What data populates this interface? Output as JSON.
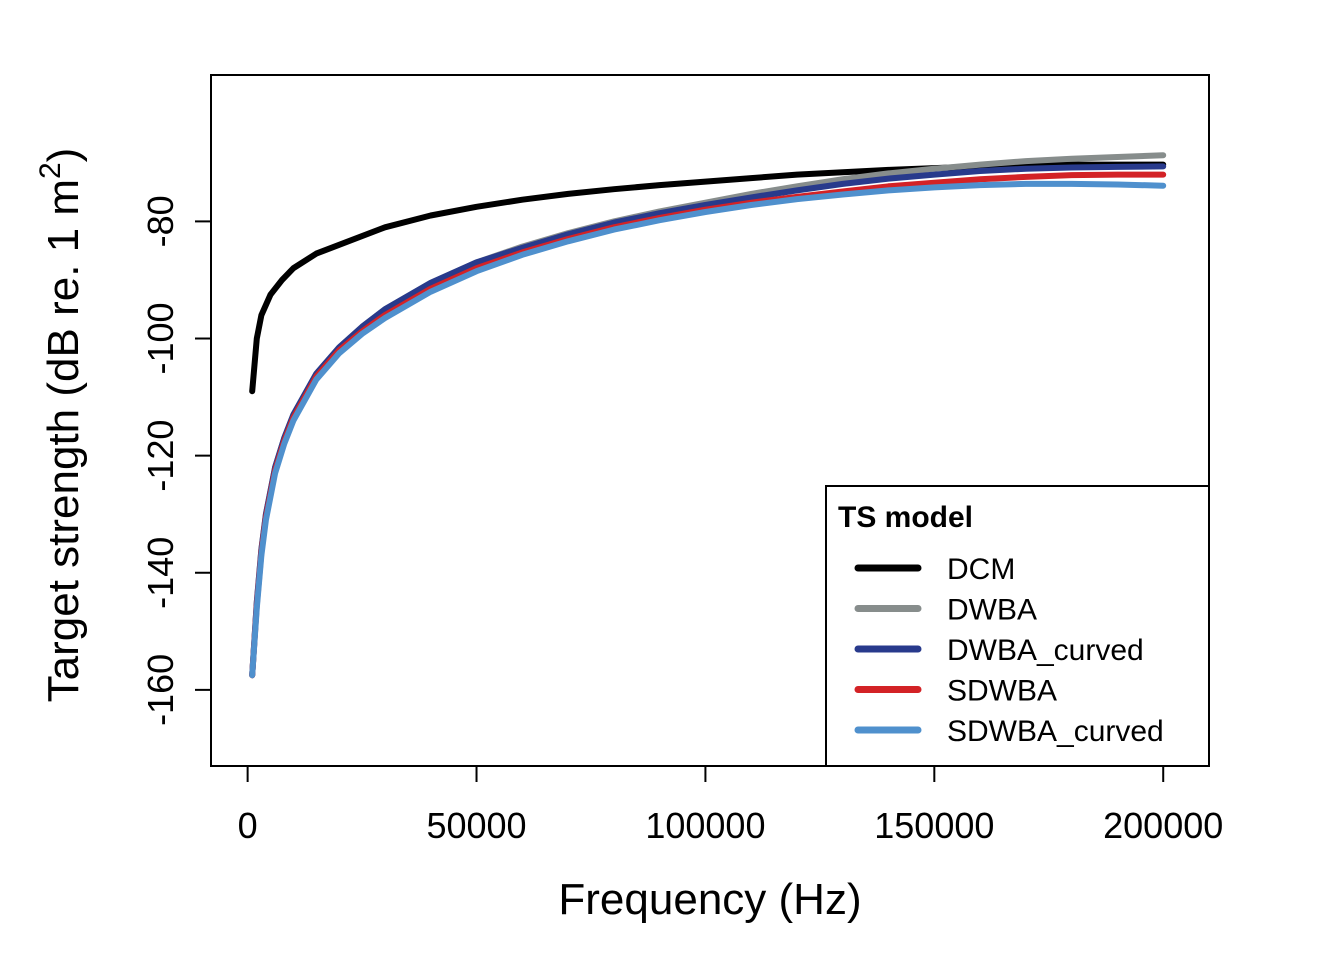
{
  "chart_data": {
    "type": "line",
    "title": "",
    "xlabel": "Frequency (Hz)",
    "ylabel_main": "Target strength (dB re. 1 m",
    "ylabel_sup": "2",
    "ylabel_close": ")",
    "xlim": [
      -8000,
      210000
    ],
    "ylim": [
      -173,
      -55
    ],
    "xticks": [
      0,
      50000,
      100000,
      150000,
      200000
    ],
    "xtick_labels": [
      "0",
      "50000",
      "100000",
      "150000",
      "200000"
    ],
    "yticks": [
      -160,
      -140,
      -120,
      -100,
      -80
    ],
    "ytick_labels": [
      "-160",
      "-140",
      "-120",
      "-100",
      "-80"
    ],
    "grid": false,
    "legend": {
      "title": "TS model",
      "position": "bottom-right",
      "entries": [
        "DCM",
        "DWBA",
        "DWBA_curved",
        "SDWBA",
        "SDWBA_curved"
      ]
    },
    "series": [
      {
        "name": "DCM",
        "color": "#000000",
        "x": [
          1000,
          2000,
          3000,
          5000,
          7500,
          10000,
          15000,
          20000,
          30000,
          40000,
          50000,
          60000,
          70000,
          80000,
          90000,
          100000,
          110000,
          120000,
          130000,
          140000,
          150000,
          160000,
          170000,
          180000,
          190000,
          200000
        ],
        "y": [
          -109,
          -100,
          -96,
          -92.5,
          -90,
          -88,
          -85.5,
          -84,
          -81,
          -79,
          -77.5,
          -76.3,
          -75.3,
          -74.5,
          -73.8,
          -73.2,
          -72.6,
          -72,
          -71.6,
          -71.2,
          -70.9,
          -70.6,
          -70.4,
          -70.3,
          -70.3,
          -70.3
        ]
      },
      {
        "name": "DWBA",
        "color": "#878d8c",
        "x": [
          1000,
          2000,
          3000,
          4000,
          6000,
          8000,
          10000,
          15000,
          20000,
          25000,
          30000,
          40000,
          50000,
          60000,
          70000,
          80000,
          90000,
          100000,
          110000,
          120000,
          130000,
          140000,
          150000,
          160000,
          170000,
          180000,
          190000,
          200000
        ],
        "y": [
          -157.5,
          -145,
          -136,
          -130,
          -122,
          -117,
          -113,
          -106,
          -101.5,
          -98,
          -95,
          -90.5,
          -87,
          -84.3,
          -82,
          -80,
          -78.3,
          -76.8,
          -75.3,
          -74,
          -72.8,
          -71.8,
          -71,
          -70.3,
          -69.7,
          -69.3,
          -69,
          -68.7
        ]
      },
      {
        "name": "DWBA_curved",
        "color": "#283a8c",
        "x": [
          1000,
          2000,
          3000,
          4000,
          6000,
          8000,
          10000,
          15000,
          20000,
          25000,
          30000,
          40000,
          50000,
          60000,
          70000,
          80000,
          90000,
          100000,
          110000,
          120000,
          130000,
          140000,
          150000,
          160000,
          170000,
          180000,
          190000,
          200000
        ],
        "y": [
          -157.5,
          -145,
          -136,
          -130,
          -122,
          -117,
          -113,
          -106,
          -101.5,
          -98,
          -95,
          -90.5,
          -87,
          -84.5,
          -82.2,
          -80.2,
          -78.6,
          -77.2,
          -75.9,
          -74.7,
          -73.6,
          -72.7,
          -72,
          -71.4,
          -71,
          -70.8,
          -70.7,
          -70.6
        ]
      },
      {
        "name": "SDWBA",
        "color": "#d32226",
        "x": [
          1000,
          2000,
          3000,
          4000,
          6000,
          8000,
          10000,
          15000,
          20000,
          25000,
          30000,
          40000,
          50000,
          60000,
          70000,
          80000,
          90000,
          100000,
          110000,
          120000,
          130000,
          140000,
          150000,
          160000,
          170000,
          180000,
          190000,
          200000
        ],
        "y": [
          -157.5,
          -145.5,
          -136.5,
          -130.5,
          -122.5,
          -117.5,
          -113.5,
          -106.5,
          -102,
          -98.8,
          -96,
          -91.5,
          -88,
          -85.3,
          -83,
          -81,
          -79.4,
          -78,
          -76.8,
          -75.8,
          -74.9,
          -74,
          -73.4,
          -72.8,
          -72.4,
          -72.1,
          -72,
          -72
        ]
      },
      {
        "name": "SDWBA_curved",
        "color": "#4f90cd",
        "x": [
          1000,
          2000,
          3000,
          4000,
          6000,
          8000,
          10000,
          15000,
          20000,
          25000,
          30000,
          40000,
          50000,
          60000,
          70000,
          80000,
          90000,
          100000,
          110000,
          120000,
          130000,
          140000,
          150000,
          160000,
          170000,
          180000,
          190000,
          200000
        ],
        "y": [
          -157.5,
          -146,
          -137,
          -131,
          -123,
          -118,
          -114,
          -107,
          -102.5,
          -99.2,
          -96.5,
          -92,
          -88.5,
          -85.7,
          -83.4,
          -81.4,
          -79.8,
          -78.4,
          -77.2,
          -76.2,
          -75.4,
          -74.7,
          -74.2,
          -73.8,
          -73.6,
          -73.6,
          -73.7,
          -73.9
        ]
      }
    ]
  }
}
